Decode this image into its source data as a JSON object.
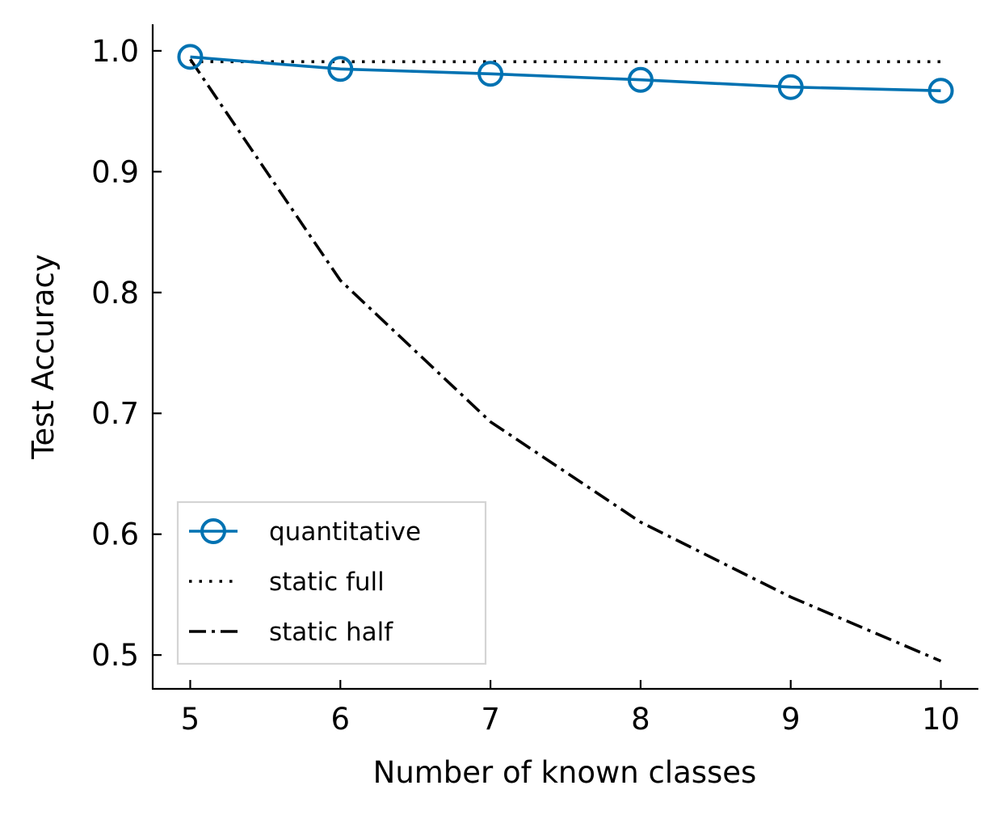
{
  "chart_data": {
    "type": "line",
    "title": "",
    "xlabel": "Number of known classes",
    "ylabel": "Test Accuracy",
    "x": [
      5,
      6,
      7,
      8,
      9,
      10
    ],
    "xlim": [
      4.75,
      10.25
    ],
    "ylim": [
      0.472,
      1.022
    ],
    "xticks": [
      "5",
      "6",
      "7",
      "8",
      "9",
      "10"
    ],
    "yticks": [
      "0.5",
      "0.6",
      "0.7",
      "0.8",
      "0.9",
      "1.0"
    ],
    "grid": false,
    "legend_position": "lower-left",
    "series": [
      {
        "name": "quantitative",
        "values": [
          0.995,
          0.985,
          0.981,
          0.976,
          0.97,
          0.967
        ],
        "color": "#0072b2",
        "style": "solid",
        "marker": "open-circle"
      },
      {
        "name": "static full",
        "values": [
          0.991,
          0.991,
          0.991,
          0.991,
          0.991,
          0.991
        ],
        "color": "#000000",
        "style": "dotted"
      },
      {
        "name": "static half",
        "values": [
          0.993,
          0.81,
          0.693,
          0.61,
          0.548,
          0.495
        ],
        "color": "#000000",
        "style": "dash-dot"
      }
    ]
  }
}
